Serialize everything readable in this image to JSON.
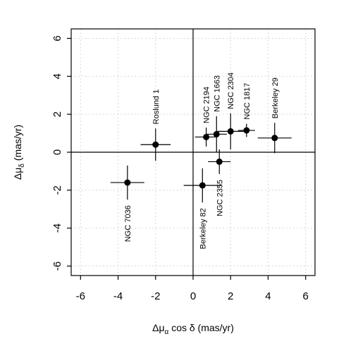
{
  "chart_data": {
    "type": "scatter",
    "xlabel_main": "Δμ",
    "xlabel_sub": "α",
    "xlabel_tail": " cos δ (mas/yr)",
    "ylabel_main": "Δμ",
    "ylabel_sub": "δ",
    "ylabel_tail": " (mas/yr)",
    "xlim": [
      -6.5,
      6.5
    ],
    "ylim": [
      -6.5,
      6.5
    ],
    "xticks": [
      -6,
      -4,
      -2,
      0,
      2,
      4,
      6
    ],
    "yticks": [
      -6,
      -4,
      -2,
      0,
      2,
      4,
      6
    ],
    "grid": true,
    "reference_lines": {
      "x": 0,
      "y": 0
    },
    "marker_color": "#000000",
    "points": [
      {
        "label": "Roslund 1",
        "x": -2.0,
        "y": 0.4,
        "xerr": 0.8,
        "yerr": 0.85,
        "label_pos": "above"
      },
      {
        "label": "NGC 7036",
        "x": -3.5,
        "y": -1.6,
        "xerr": 0.9,
        "yerr": 0.9,
        "label_pos": "below"
      },
      {
        "label": "NGC 2194",
        "x": 0.7,
        "y": 0.8,
        "xerr": 0.6,
        "yerr": 0.5,
        "label_pos": "above"
      },
      {
        "label": "NGC 1663",
        "x": 1.25,
        "y": 0.95,
        "xerr": 0.55,
        "yerr": 0.95,
        "label_pos": "above"
      },
      {
        "label": "NGC 2304",
        "x": 2.0,
        "y": 1.1,
        "xerr": 0.7,
        "yerr": 0.95,
        "label_pos": "above"
      },
      {
        "label": "NGC 1817",
        "x": 2.85,
        "y": 1.15,
        "xerr": 0.45,
        "yerr": 0.35,
        "label_pos": "above"
      },
      {
        "label": "Berkeley 29",
        "x": 4.35,
        "y": 0.75,
        "xerr": 0.9,
        "yerr": 0.8,
        "label_pos": "above"
      },
      {
        "label": "Berkeley 82",
        "x": 0.5,
        "y": -1.75,
        "xerr": 1.0,
        "yerr": 0.9,
        "label_pos": "below"
      },
      {
        "label": "NGC 2355",
        "x": 1.4,
        "y": -0.5,
        "xerr": 0.6,
        "yerr": 0.65,
        "label_pos": "below"
      }
    ]
  }
}
